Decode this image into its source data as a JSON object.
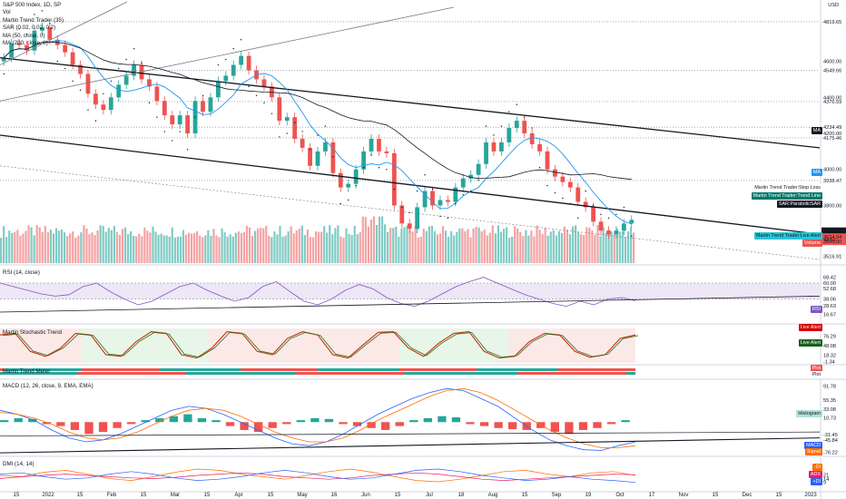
{
  "legend": {
    "main": [
      "S&P 500 Index, 1D, SP",
      "Vol",
      "Martin Trend Trader (35)",
      "SAR (0.02, 0.02, 0.2)",
      "MA (50, close, 0)",
      "MA (200, close, 0)"
    ],
    "rsi": "RSI (14, close)",
    "stoch": "Martin Stochastic Trend",
    "mtm": "Martin Trend Meter",
    "macd": "MACD (12, 26, close, 9, EMA, EMA)",
    "dmi": "DMI (14, 14)"
  },
  "currency": "USD",
  "price_axis": {
    "ticks": [
      "4819.65",
      "4600.00",
      "4549.66",
      "4400.00",
      "4376.59",
      "4200.00",
      "4234.49",
      "4175.46",
      "4000.00",
      "3938.47",
      "3800.00",
      "3657.81",
      "3624.94",
      "44:52",
      "3600.00",
      "3516.91"
    ]
  },
  "badges": {
    "ma": "MA",
    "ma2": "MA",
    "stop_loss": "Martin Trend Trader:Stop Loss",
    "trend_line": "Martin Trend Trader:Trend Line",
    "sar": "SAR:ParabolicSAR",
    "live_alert": "Martin Trend Trader:Live Alert",
    "volume": "Volume",
    "rsi": "RSI",
    "stoch_live_alert_1": "Live Alert",
    "stoch_live_alert_2": "Live Alert",
    "plot1": "Plot",
    "plot2": "Plot",
    "histogram": "Histogram",
    "macd": "MACD",
    "signal": "Signal",
    "dmi_minus": "-DI",
    "adx": "ADX",
    "dmi_plus": "+DI"
  },
  "rsi_axis": [
    "68.42",
    "60.00",
    "52.68",
    "38.06",
    "28.63",
    "16.67"
  ],
  "stoch_axis": [
    "76.29",
    "48.08",
    "18.32",
    "-1.34"
  ],
  "macd_axis": [
    "91.78",
    "55.35",
    "33.08",
    "10.73",
    "-31.45",
    "-45.84",
    "-76.22"
  ],
  "dmi_axis": [
    "21",
    "14",
    "9"
  ],
  "date_axis": [
    "15",
    "2022",
    "15",
    "Feb",
    "15",
    "Mar",
    "15",
    "Apr",
    "15",
    "May",
    "16",
    "Jun",
    "15",
    "Jul",
    "18",
    "Aug",
    "15",
    "Sep",
    "19",
    "Oct",
    "17",
    "Nov",
    "15",
    "Dec",
    "15",
    "2023"
  ],
  "chart_data": [
    {
      "type": "candlestick",
      "title": "S&P 500 Index, 1D, SP",
      "ylim": [
        3480,
        4900
      ],
      "series": [
        {
          "name": "S&P 500 Index",
          "values": [
            4620,
            4700,
            4690,
            4660,
            4770,
            4790,
            4720,
            4690,
            4650,
            4580,
            4530,
            4420,
            4360,
            4330,
            4400,
            4470,
            4520,
            4580,
            4500,
            4460,
            4380,
            4300,
            4250,
            4300,
            4200,
            4380,
            4320,
            4400,
            4490,
            4520,
            4580,
            4630,
            4550,
            4500,
            4460,
            4400,
            4270,
            4290,
            4170,
            4120,
            4020,
            4100,
            4150,
            3980,
            3900,
            3920,
            4000,
            4100,
            4170,
            4100,
            4090,
            3800,
            3700,
            3670,
            3790,
            3880,
            3800,
            3830,
            3820,
            3900,
            3950,
            3970,
            4030,
            4150,
            4100,
            4150,
            4230,
            4270,
            4200,
            4140,
            4100,
            4000,
            3960,
            3930,
            3900,
            3820,
            3790,
            3710,
            3660,
            3640,
            3660,
            3700,
            3720
          ]
        }
      ]
    },
    {
      "type": "bar",
      "title": "Vol",
      "series": [
        {
          "name": "Vol",
          "values": []
        }
      ]
    },
    {
      "type": "line",
      "title": "RSI (14, close)",
      "ylim": [
        10,
        75
      ],
      "series": [
        {
          "name": "RSI",
          "values": [
            60,
            55,
            50,
            45,
            42,
            44,
            55,
            60,
            48,
            38,
            30,
            35,
            45,
            55,
            60,
            50,
            42,
            35,
            40,
            55,
            62,
            48,
            35,
            30,
            38,
            50,
            58,
            52,
            40,
            32,
            28,
            35,
            45,
            55,
            62,
            68,
            60,
            52,
            44,
            38,
            32,
            28,
            35,
            30,
            38,
            40,
            36
          ]
        }
      ]
    },
    {
      "type": "line",
      "title": "Martin Stochastic Trend",
      "ylim": [
        -5,
        100
      ],
      "series": [
        {
          "name": "Stochastic",
          "values": [
            80,
            85,
            30,
            15,
            40,
            85,
            80,
            20,
            15,
            60,
            90,
            85,
            20,
            10,
            40,
            90,
            85,
            30,
            20,
            70,
            90,
            80,
            20,
            10,
            50,
            88,
            90,
            40,
            15,
            55,
            85,
            90,
            30,
            10,
            15,
            60,
            85,
            80,
            30,
            12,
            20,
            70,
            80
          ]
        }
      ]
    },
    {
      "type": "bar",
      "title": "MACD (12, 26, close, 9, EMA, EMA)",
      "ylim": [
        -80,
        95
      ],
      "series": [
        {
          "name": "Histogram",
          "values": [
            5,
            10,
            8,
            -5,
            -10,
            -20,
            -30,
            -25,
            -15,
            -5,
            5,
            10,
            15,
            20,
            10,
            5,
            -10,
            -20,
            -25,
            -15,
            -5,
            5,
            10,
            8,
            -5,
            -10,
            -15,
            -20,
            -10,
            5,
            10,
            15,
            12,
            -5,
            -10,
            -15,
            -18,
            -20,
            -15,
            -25,
            -30,
            -20,
            -15,
            -5,
            5
          ]
        },
        {
          "name": "MACD",
          "values": [
            30,
            20,
            5,
            -20,
            -40,
            -50,
            -45,
            -30,
            -10,
            10,
            30,
            40,
            35,
            20,
            0,
            -20,
            -40,
            -55,
            -60,
            -50,
            -30,
            -5,
            20,
            40,
            60,
            75,
            85,
            80,
            60,
            40,
            10,
            -20,
            -45,
            -60,
            -70,
            -72,
            -60,
            -50
          ]
        },
        {
          "name": "Signal",
          "values": [
            25,
            20,
            10,
            -5,
            -25,
            -40,
            -45,
            -40,
            -25,
            -5,
            15,
            30,
            35,
            30,
            15,
            -5,
            -25,
            -40,
            -50,
            -50,
            -40,
            -20,
            5,
            25,
            45,
            65,
            80,
            85,
            75,
            55,
            30,
            5,
            -20,
            -40,
            -55,
            -65,
            -65,
            -60
          ]
        }
      ]
    },
    {
      "type": "line",
      "title": "DMI (14, 14)",
      "ylim": [
        0,
        40
      ],
      "series": [
        {
          "name": "-DI",
          "values": [
            20,
            18,
            25,
            28,
            22,
            15,
            12,
            18,
            25,
            30,
            28,
            22,
            18,
            14,
            20,
            26,
            30,
            25,
            18,
            12,
            10,
            14,
            20,
            26,
            28,
            22,
            18,
            24,
            26,
            20
          ]
        },
        {
          "name": "ADX",
          "values": [
            15,
            18,
            20,
            22,
            20,
            18,
            16,
            15,
            17,
            20,
            22,
            24,
            22,
            18,
            16,
            14,
            16,
            20,
            22,
            24,
            22,
            18,
            14,
            12,
            14,
            16,
            18,
            20,
            22,
            21
          ]
        },
        {
          "name": "+DI",
          "values": [
            22,
            24,
            18,
            14,
            16,
            22,
            26,
            22,
            16,
            12,
            14,
            18,
            24,
            28,
            24,
            18,
            14,
            16,
            22,
            28,
            30,
            26,
            20,
            16,
            12,
            14,
            18,
            14,
            12,
            9
          ]
        }
      ]
    }
  ]
}
